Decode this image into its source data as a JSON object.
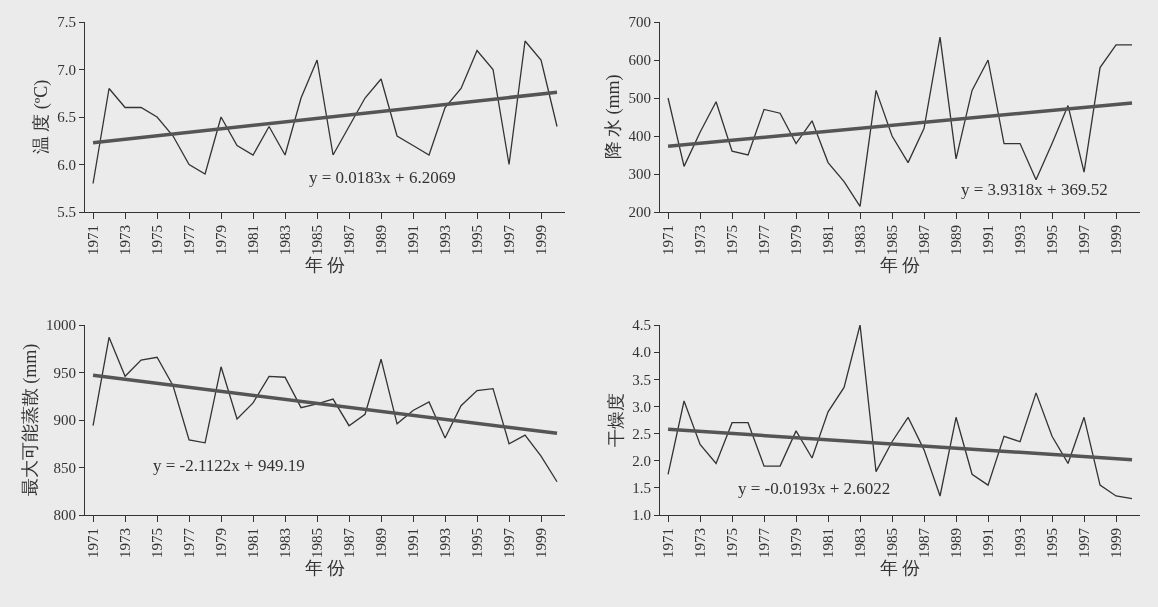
{
  "chart_data": [
    {
      "type": "line",
      "ylabel": "温 度 (ºC)",
      "xlabel": "年 份",
      "x": [
        "1971",
        "1972",
        "1973",
        "1974",
        "1975",
        "1976",
        "1977",
        "1978",
        "1979",
        "1980",
        "1981",
        "1982",
        "1983",
        "1984",
        "1985",
        "1986",
        "1987",
        "1988",
        "1989",
        "1990",
        "1991",
        "1992",
        "1993",
        "1994",
        "1995",
        "1996",
        "1997",
        "1998",
        "1999",
        "2000"
      ],
      "series": [
        {
          "color": "#333333",
          "values": [
            5.8,
            6.8,
            6.6,
            6.6,
            6.5,
            6.3,
            6.0,
            5.9,
            6.5,
            6.2,
            6.1,
            6.4,
            6.1,
            6.7,
            7.1,
            6.1,
            6.4,
            6.7,
            6.9,
            6.3,
            6.2,
            6.1,
            6.6,
            6.8,
            7.2,
            7.0,
            6.0,
            7.3,
            7.1,
            6.4
          ]
        },
        {
          "type": "line",
          "color": "#555555",
          "x": [
            "1971",
            "2000"
          ],
          "values": [
            6.23,
            6.76
          ]
        }
      ],
      "xlim": [
        "1970-07",
        "2000-07"
      ],
      "xticks": [
        "1971",
        "1973",
        "1975",
        "1977",
        "1979",
        "1981",
        "1983",
        "1985",
        "1987",
        "1989",
        "1991",
        "1993",
        "1995",
        "1997",
        "1999"
      ],
      "ylim": [
        5.5,
        7.5
      ],
      "yticks": [
        {
          "value": 5.5,
          "label": "5.5"
        },
        {
          "value": 6,
          "label": "6.0"
        },
        {
          "value": 6.5,
          "label": "6.5"
        },
        {
          "value": 7,
          "label": "7.0"
        },
        {
          "value": 7.5,
          "label": "7.5"
        }
      ],
      "annotations": [
        "y = 0.0183x + 6.2069"
      ],
      "marker": "none",
      "line_style": "solid"
    },
    {
      "type": "line",
      "ylabel": "降 水 (mm)",
      "xlabel": "年 份",
      "x": [
        "1971",
        "1972",
        "1973",
        "1974",
        "1975",
        "1976",
        "1977",
        "1978",
        "1979",
        "1980",
        "1981",
        "1982",
        "1983",
        "1984",
        "1985",
        "1986",
        "1987",
        "1988",
        "1989",
        "1990",
        "1991",
        "1992",
        "1993",
        "1994",
        "1995",
        "1996",
        "1997",
        "1998",
        "1999",
        "2000"
      ],
      "series": [
        {
          "color": "#333333",
          "values": [
            500,
            320,
            410,
            490,
            360,
            350,
            470,
            460,
            380,
            440,
            330,
            280,
            215,
            520,
            400,
            330,
            420,
            660,
            340,
            520,
            600,
            380,
            380,
            285,
            380,
            480,
            305,
            580,
            640,
            640
          ]
        },
        {
          "type": "line",
          "color": "#555555",
          "x": [
            "1971",
            "2000"
          ],
          "values": [
            373,
            487
          ]
        }
      ],
      "xlim": [
        "1970-07",
        "2000-07"
      ],
      "xticks": [
        "1971",
        "1973",
        "1975",
        "1977",
        "1979",
        "1981",
        "1983",
        "1985",
        "1987",
        "1989",
        "1991",
        "1993",
        "1995",
        "1997",
        "1999"
      ],
      "ylim": [
        200,
        700
      ],
      "yticks": [
        200,
        300,
        400,
        500,
        600,
        700
      ],
      "annotations": [
        "y = 3.9318x + 369.52"
      ],
      "marker": "none",
      "line_style": "solid"
    },
    {
      "type": "line",
      "ylabel": "最大可能蒸散 (mm)",
      "xlabel": "年 份",
      "x": [
        "1971",
        "1972",
        "1973",
        "1974",
        "1975",
        "1976",
        "1977",
        "1978",
        "1979",
        "1980",
        "1981",
        "1982",
        "1983",
        "1984",
        "1985",
        "1986",
        "1987",
        "1988",
        "1989",
        "1990",
        "1991",
        "1992",
        "1993",
        "1994",
        "1995",
        "1996",
        "1997",
        "1998",
        "1999",
        "2000"
      ],
      "series": [
        {
          "color": "#333333",
          "values": [
            894,
            987,
            946,
            963,
            966,
            936,
            879,
            876,
            956,
            901,
            918,
            946,
            945,
            913,
            917,
            922,
            894,
            906,
            964,
            896,
            910,
            919,
            881,
            915,
            931,
            933,
            875,
            884,
            862,
            835
          ]
        },
        {
          "type": "line",
          "color": "#555555",
          "x": [
            "1971",
            "2000"
          ],
          "values": [
            947,
            886
          ]
        }
      ],
      "xlim": [
        "1970-07",
        "2000-07"
      ],
      "xticks": [
        "1971",
        "1973",
        "1975",
        "1977",
        "1979",
        "1981",
        "1983",
        "1985",
        "1987",
        "1989",
        "1991",
        "1993",
        "1995",
        "1997",
        "1999"
      ],
      "ylim": [
        800,
        1000
      ],
      "yticks": [
        800,
        850,
        900,
        950,
        1000
      ],
      "annotations": [
        "y = -2.1122x + 949.19"
      ],
      "marker": "none",
      "line_style": "solid"
    },
    {
      "type": "line",
      "ylabel": "干燥度",
      "xlabel": "年 份",
      "x": [
        "1971",
        "1972",
        "1973",
        "1974",
        "1975",
        "1976",
        "1977",
        "1978",
        "1979",
        "1980",
        "1981",
        "1982",
        "1983",
        "1984",
        "1985",
        "1986",
        "1987",
        "1988",
        "1989",
        "1990",
        "1991",
        "1992",
        "1993",
        "1994",
        "1995",
        "1996",
        "1997",
        "1998",
        "1999",
        "2000"
      ],
      "series": [
        {
          "color": "#333333",
          "values": [
            1.75,
            3.1,
            2.3,
            1.95,
            2.7,
            2.7,
            1.9,
            1.9,
            2.55,
            2.05,
            2.9,
            3.35,
            4.5,
            1.8,
            2.35,
            2.8,
            2.2,
            1.35,
            2.8,
            1.75,
            1.55,
            2.45,
            2.35,
            3.25,
            2.45,
            1.95,
            2.8,
            1.55,
            1.35,
            1.3
          ]
        },
        {
          "type": "line",
          "color": "#555555",
          "x": [
            "1971",
            "2000"
          ],
          "values": [
            2.58,
            2.02
          ]
        }
      ],
      "xlim": [
        "1970-07",
        "2000-07"
      ],
      "xticks": [
        "1971",
        "1973",
        "1975",
        "1977",
        "1979",
        "1981",
        "1983",
        "1985",
        "1987",
        "1989",
        "1991",
        "1993",
        "1995",
        "1997",
        "1999"
      ],
      "ylim": [
        1,
        4.5
      ],
      "yticks": [
        {
          "value": 1,
          "label": "1.0"
        },
        {
          "value": 1.5,
          "label": "1.5"
        },
        {
          "value": 2,
          "label": "2.0"
        },
        {
          "value": 2.5,
          "label": "2.5"
        },
        {
          "value": 3,
          "label": "3.0"
        },
        {
          "value": 3.5,
          "label": "3.5"
        },
        {
          "value": 4,
          "label": "4.0"
        },
        {
          "value": 4.5,
          "label": "4.5"
        }
      ],
      "annotations": [
        "y = -0.0193x + 2.6022"
      ],
      "marker": "none",
      "line_style": "solid"
    }
  ]
}
